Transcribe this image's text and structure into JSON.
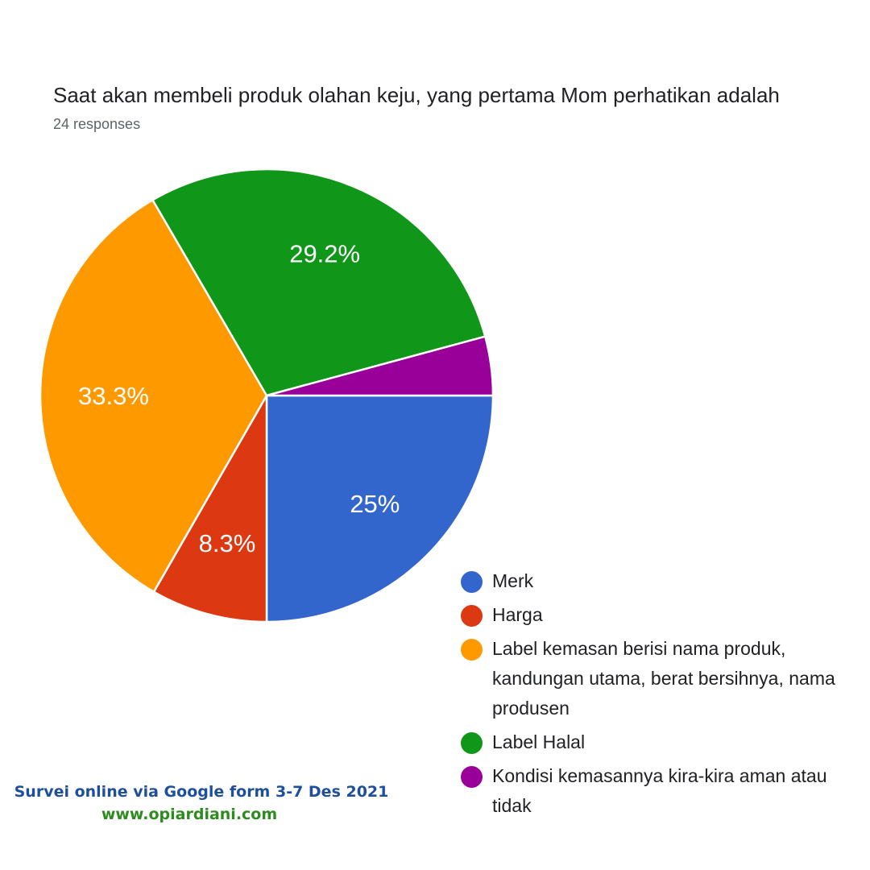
{
  "chart_data": {
    "type": "pie",
    "title": "Saat akan membeli produk olahan keju, yang pertama Mom perhatikan adalah",
    "subtitle": "24 responses",
    "slices": [
      {
        "name": "Merk",
        "value": 25.0,
        "label": "25%",
        "color": "#3366cc"
      },
      {
        "name": "Harga",
        "value": 8.3,
        "label": "8.3%",
        "color": "#dc3912"
      },
      {
        "name": "Label kemasan berisi nama produk, kandungan utama, berat bersihnya, nama produsen",
        "value": 33.3,
        "label": "33.3%",
        "color": "#ff9900"
      },
      {
        "name": "Label Halal",
        "value": 29.2,
        "label": "29.2%",
        "color": "#109618"
      },
      {
        "name": "Kondisi kemasannya kira-kira aman atau tidak",
        "value": 4.2,
        "label": "",
        "color": "#990099"
      }
    ],
    "legend_position": "bottom-right"
  },
  "footer": {
    "line1": "Survei online via Google form 3-7 Des 2021",
    "line2": "www.opiardiani.com"
  }
}
